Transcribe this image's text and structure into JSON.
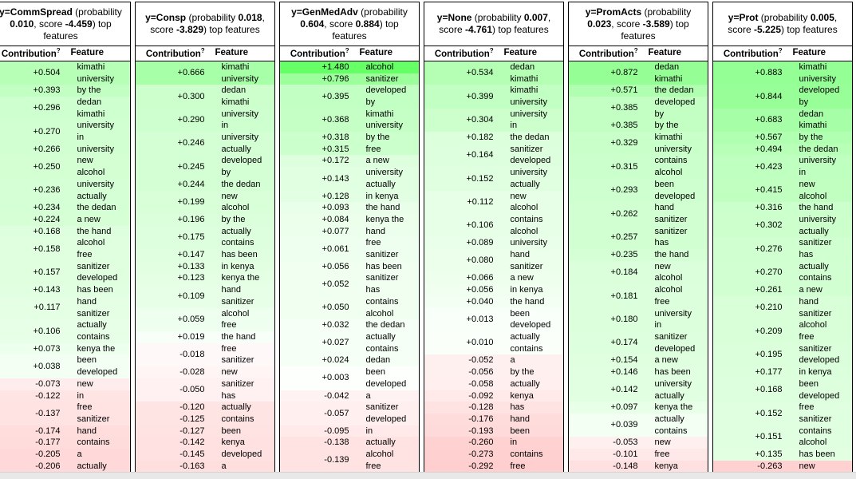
{
  "labels": {
    "probability_word": "probability",
    "score_word": "score",
    "suffix": "top features",
    "contribution_header": "Contribution",
    "contribution_help": "?",
    "feature_header": "Feature"
  },
  "colors": {
    "border": "#000000",
    "text": "#000000",
    "positive_strongest": "#66ff66",
    "negative_tint": "#ffcccc",
    "bottom_bar": "#e8e8e8"
  },
  "chart_data": {
    "type": "table",
    "positive_hue": 120,
    "negative_hue": 0,
    "max_abs_weight": 1.48,
    "tables": [
      {
        "target": "y=CommSpread",
        "probability": "0.010",
        "score": "-4.459",
        "rows": [
          {
            "w": 0.504,
            "f": "kimathi university"
          },
          {
            "w": 0.393,
            "f": "by the"
          },
          {
            "w": 0.296,
            "f": "dedan kimathi"
          },
          {
            "w": 0.27,
            "f": "university in"
          },
          {
            "w": 0.266,
            "f": "university"
          },
          {
            "w": 0.25,
            "f": "new alcohol"
          },
          {
            "w": 0.236,
            "f": "university actually"
          },
          {
            "w": 0.234,
            "f": "the dedan"
          },
          {
            "w": 0.224,
            "f": "a new"
          },
          {
            "w": 0.168,
            "f": "the hand"
          },
          {
            "w": 0.158,
            "f": "alcohol free"
          },
          {
            "w": 0.157,
            "f": "sanitizer developed"
          },
          {
            "w": 0.143,
            "f": "has been"
          },
          {
            "w": 0.117,
            "f": "hand sanitizer"
          },
          {
            "w": 0.106,
            "f": "actually contains"
          },
          {
            "w": 0.073,
            "f": "kenya the"
          },
          {
            "w": 0.038,
            "f": "been developed"
          },
          {
            "w": -0.073,
            "f": "new"
          },
          {
            "w": -0.122,
            "f": "in"
          },
          {
            "w": -0.137,
            "f": "free sanitizer"
          },
          {
            "w": -0.174,
            "f": "hand"
          },
          {
            "w": -0.177,
            "f": "contains"
          },
          {
            "w": -0.205,
            "f": "a"
          },
          {
            "w": -0.206,
            "f": "actually"
          }
        ]
      },
      {
        "target": "y=Consp",
        "probability": "0.018",
        "score": "-3.829",
        "rows": [
          {
            "w": 0.666,
            "f": "kimathi university"
          },
          {
            "w": 0.3,
            "f": "dedan kimathi"
          },
          {
            "w": 0.29,
            "f": "university in"
          },
          {
            "w": 0.246,
            "f": "university actually"
          },
          {
            "w": 0.245,
            "f": "developed by"
          },
          {
            "w": 0.244,
            "f": "the dedan"
          },
          {
            "w": 0.199,
            "f": "new alcohol"
          },
          {
            "w": 0.196,
            "f": "by the"
          },
          {
            "w": 0.175,
            "f": "actually contains"
          },
          {
            "w": 0.147,
            "f": "has been"
          },
          {
            "w": 0.133,
            "f": "in kenya"
          },
          {
            "w": 0.123,
            "f": "kenya the"
          },
          {
            "w": 0.109,
            "f": "hand sanitizer"
          },
          {
            "w": 0.059,
            "f": "alcohol free"
          },
          {
            "w": 0.019,
            "f": "the hand"
          },
          {
            "w": -0.018,
            "f": "free sanitizer"
          },
          {
            "w": -0.028,
            "f": "new"
          },
          {
            "w": -0.05,
            "f": "sanitizer has"
          },
          {
            "w": -0.12,
            "f": "actually"
          },
          {
            "w": -0.125,
            "f": "contains"
          },
          {
            "w": -0.127,
            "f": "been"
          },
          {
            "w": -0.142,
            "f": "kenya"
          },
          {
            "w": -0.145,
            "f": "developed"
          },
          {
            "w": -0.163,
            "f": "a"
          }
        ]
      },
      {
        "target": "y=GenMedAdv",
        "probability": "0.604",
        "score": "0.884",
        "rows": [
          {
            "w": 1.48,
            "f": "alcohol"
          },
          {
            "w": 0.796,
            "f": "sanitizer"
          },
          {
            "w": 0.395,
            "f": "developed by"
          },
          {
            "w": 0.368,
            "f": "kimathi university"
          },
          {
            "w": 0.318,
            "f": "by the"
          },
          {
            "w": 0.315,
            "f": "free"
          },
          {
            "w": 0.172,
            "f": "a new"
          },
          {
            "w": 0.143,
            "f": "university actually"
          },
          {
            "w": 0.128,
            "f": "in kenya"
          },
          {
            "w": 0.093,
            "f": "the hand"
          },
          {
            "w": 0.084,
            "f": "kenya the"
          },
          {
            "w": 0.077,
            "f": "hand"
          },
          {
            "w": 0.061,
            "f": "free sanitizer"
          },
          {
            "w": 0.056,
            "f": "has been"
          },
          {
            "w": 0.052,
            "f": "sanitizer has"
          },
          {
            "w": 0.05,
            "f": "contains alcohol"
          },
          {
            "w": 0.032,
            "f": "the dedan"
          },
          {
            "w": 0.027,
            "f": "actually contains"
          },
          {
            "w": 0.024,
            "f": "dedan"
          },
          {
            "w": 0.003,
            "f": "been developed"
          },
          {
            "w": -0.042,
            "f": "a"
          },
          {
            "w": -0.057,
            "f": "sanitizer developed"
          },
          {
            "w": -0.095,
            "f": "in"
          },
          {
            "w": -0.138,
            "f": "actually"
          },
          {
            "w": -0.139,
            "f": "alcohol free"
          }
        ]
      },
      {
        "target": "y=None",
        "probability": "0.007",
        "score": "-4.761",
        "rows": [
          {
            "w": 0.534,
            "f": "dedan kimathi"
          },
          {
            "w": 0.399,
            "f": "kimathi university"
          },
          {
            "w": 0.304,
            "f": "university in"
          },
          {
            "w": 0.182,
            "f": "the dedan"
          },
          {
            "w": 0.164,
            "f": "sanitizer developed"
          },
          {
            "w": 0.152,
            "f": "university actually"
          },
          {
            "w": 0.112,
            "f": "new alcohol"
          },
          {
            "w": 0.106,
            "f": "contains alcohol"
          },
          {
            "w": 0.089,
            "f": "university"
          },
          {
            "w": 0.08,
            "f": "hand sanitizer"
          },
          {
            "w": 0.066,
            "f": "a new"
          },
          {
            "w": 0.056,
            "f": "in kenya"
          },
          {
            "w": 0.04,
            "f": "the hand"
          },
          {
            "w": 0.013,
            "f": "been developed"
          },
          {
            "w": 0.01,
            "f": "actually contains"
          },
          {
            "w": -0.052,
            "f": "a"
          },
          {
            "w": -0.056,
            "f": "by the"
          },
          {
            "w": -0.058,
            "f": "actually"
          },
          {
            "w": -0.092,
            "f": "kenya"
          },
          {
            "w": -0.128,
            "f": "has"
          },
          {
            "w": -0.176,
            "f": "hand"
          },
          {
            "w": -0.193,
            "f": "been"
          },
          {
            "w": -0.26,
            "f": "in"
          },
          {
            "w": -0.273,
            "f": "contains"
          },
          {
            "w": -0.292,
            "f": "free"
          }
        ]
      },
      {
        "target": "y=PromActs",
        "probability": "0.023",
        "score": "-3.589",
        "rows": [
          {
            "w": 0.872,
            "f": "dedan kimathi"
          },
          {
            "w": 0.571,
            "f": "the dedan"
          },
          {
            "w": 0.385,
            "f": "developed by"
          },
          {
            "w": 0.385,
            "f": "by the"
          },
          {
            "w": 0.329,
            "f": "kimathi university"
          },
          {
            "w": 0.315,
            "f": "contains alcohol"
          },
          {
            "w": 0.293,
            "f": "been developed"
          },
          {
            "w": 0.262,
            "f": "hand sanitizer"
          },
          {
            "w": 0.257,
            "f": "sanitizer has"
          },
          {
            "w": 0.235,
            "f": "the hand"
          },
          {
            "w": 0.184,
            "f": "new alcohol"
          },
          {
            "w": 0.181,
            "f": "alcohol free"
          },
          {
            "w": 0.18,
            "f": "university in"
          },
          {
            "w": 0.174,
            "f": "sanitizer developed"
          },
          {
            "w": 0.154,
            "f": "a new"
          },
          {
            "w": 0.146,
            "f": "has been"
          },
          {
            "w": 0.142,
            "f": "university actually"
          },
          {
            "w": 0.097,
            "f": "kenya the"
          },
          {
            "w": 0.039,
            "f": "actually contains"
          },
          {
            "w": -0.053,
            "f": "new"
          },
          {
            "w": -0.101,
            "f": "free"
          },
          {
            "w": -0.148,
            "f": "kenya"
          }
        ]
      },
      {
        "target": "y=Prot",
        "probability": "0.005",
        "score": "-5.225",
        "rows": [
          {
            "w": 0.883,
            "f": "kimathi university"
          },
          {
            "w": 0.844,
            "f": "developed by"
          },
          {
            "w": 0.683,
            "f": "dedan kimathi"
          },
          {
            "w": 0.567,
            "f": "by the"
          },
          {
            "w": 0.494,
            "f": "the dedan"
          },
          {
            "w": 0.423,
            "f": "university in"
          },
          {
            "w": 0.415,
            "f": "new alcohol"
          },
          {
            "w": 0.316,
            "f": "the hand"
          },
          {
            "w": 0.302,
            "f": "university actually"
          },
          {
            "w": 0.276,
            "f": "sanitizer has"
          },
          {
            "w": 0.27,
            "f": "actually contains"
          },
          {
            "w": 0.261,
            "f": "a new"
          },
          {
            "w": 0.21,
            "f": "hand sanitizer"
          },
          {
            "w": 0.209,
            "f": "alcohol free"
          },
          {
            "w": 0.195,
            "f": "sanitizer developed"
          },
          {
            "w": 0.177,
            "f": "in kenya"
          },
          {
            "w": 0.168,
            "f": "been developed"
          },
          {
            "w": 0.152,
            "f": "free sanitizer"
          },
          {
            "w": 0.151,
            "f": "contains alcohol"
          },
          {
            "w": 0.135,
            "f": "has been"
          },
          {
            "w": -0.263,
            "f": "new"
          }
        ]
      }
    ]
  }
}
